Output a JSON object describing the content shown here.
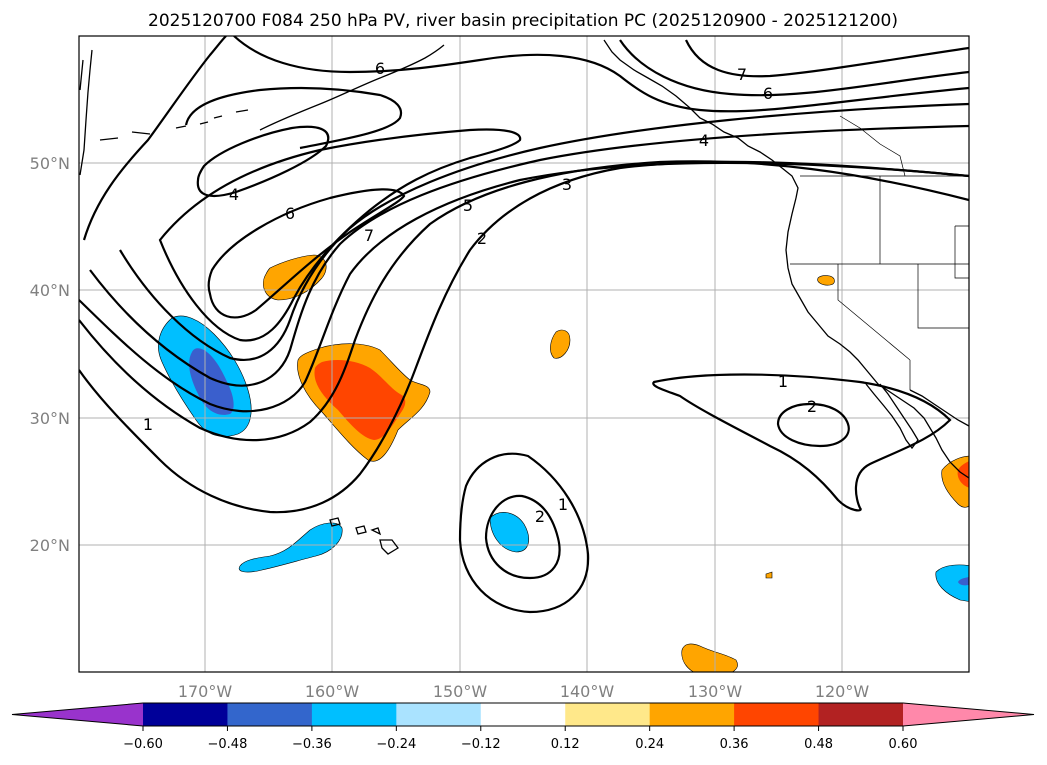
{
  "title": "2025120700 F084 250 hPa PV, river basin precipitation PC (2025120900 - 2025121200)",
  "map": {
    "projection": "cylindrical",
    "lon_range": [
      -180,
      -110
    ],
    "lat_range": [
      10,
      60
    ],
    "grid": true
  },
  "lat_labels": [
    "50°N",
    "40°N",
    "30°N",
    "20°N"
  ],
  "lon_labels": [
    "170°W",
    "160°W",
    "150°W",
    "140°W",
    "130°W",
    "120°W"
  ],
  "contour_labels": [
    "6",
    "7",
    "6",
    "4",
    "4",
    "6",
    "7",
    "5",
    "3",
    "2",
    "1",
    "1",
    "2",
    "1",
    "2"
  ],
  "colorbar": {
    "extend": "both",
    "ticks": [
      "−0.60",
      "−0.48",
      "−0.36",
      "−0.24",
      "−0.12",
      "0.12",
      "0.24",
      "0.36",
      "0.48",
      "0.60"
    ],
    "colors": [
      "#9933cc",
      "#000099",
      "#3366cc",
      "#00bfff",
      "#aae3ff",
      "#ffffff",
      "#ffe88a",
      "#ffa500",
      "#ff4500",
      "#b22222",
      "#ff88aa"
    ]
  }
}
